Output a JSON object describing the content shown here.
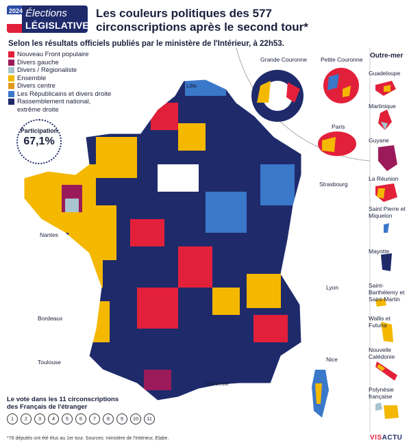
{
  "badge": {
    "line1": "Élections",
    "line2": "LÉGISLATIVES",
    "year": "2024"
  },
  "title": "Les couleurs politiques des 577 circonscriptions après le second tour*",
  "subtitle": "Selon les résultats officiels publiés par le ministère de l'Intérieur, à 22h53.",
  "legend": [
    {
      "label": "Nouveau Front populaire",
      "color": "#e2203a"
    },
    {
      "label": "Divers gauche",
      "color": "#9b1b5a"
    },
    {
      "label": "Divers / Régionaliste",
      "color": "#a7c4cf"
    },
    {
      "label": "Ensemble",
      "color": "#f4b800"
    },
    {
      "label": "Divers centre",
      "color": "#e39a1a"
    },
    {
      "label": "Les Républicains et divers droite",
      "color": "#3a78c9"
    },
    {
      "label": "Rassemblement national, extrême droite",
      "color": "#1f2a6b"
    }
  ],
  "participation": {
    "label": "Participation",
    "value": "67,1%"
  },
  "insets": {
    "grande_couronne": "Grande Couronne",
    "petite_couronne": "Petite Couronne",
    "paris": "Paris"
  },
  "cities": [
    "Lille",
    "Strasbourg",
    "Nantes",
    "Lyon",
    "Bordeaux",
    "Toulouse",
    "Nice",
    "Marseille"
  ],
  "outre_mer": {
    "title": "Outre-mer",
    "items": [
      "Guadeloupe",
      "Martinique",
      "Guyane",
      "La Réunion",
      "Saint Pierre et Miquelon",
      "Mayotte",
      "Saint-Barthélemy et Saint-Martin",
      "Wallis et Futuna",
      "Nouvelle Calédonie",
      "Polynésie française"
    ]
  },
  "etranger": {
    "title": "Le vote dans les 11 circonscriptions des Français de l'étranger",
    "circles": [
      "1",
      "2",
      "3",
      "4",
      "5",
      "6",
      "7",
      "8",
      "9",
      "10",
      "11"
    ]
  },
  "footnote": "*76 députés ont été élus au 1er tour. Sources: ministère de l'Intérieur, Elabe.",
  "brand": {
    "part1": "VIS",
    "part2": "ACTU"
  }
}
